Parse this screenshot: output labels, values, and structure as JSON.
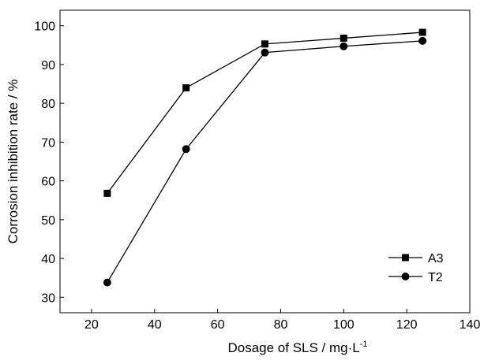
{
  "chart_data": {
    "type": "line",
    "xlabel": "Dosage of SLS / mg·L",
    "xlabel_sup": "-1",
    "ylabel": "Corrosion inhibition rate / %",
    "xlim": [
      10,
      140
    ],
    "ylim": [
      26,
      104
    ],
    "x_ticks": [
      20,
      40,
      60,
      80,
      100,
      120,
      140
    ],
    "y_ticks": [
      30,
      40,
      50,
      60,
      70,
      80,
      90,
      100
    ],
    "x": [
      25,
      50,
      75,
      100,
      125
    ],
    "series": [
      {
        "name": "A3",
        "marker": "square",
        "values": [
          56.8,
          84.0,
          95.3,
          96.8,
          98.3
        ]
      },
      {
        "name": "T2",
        "marker": "circle",
        "values": [
          33.8,
          68.2,
          93.1,
          94.7,
          96.1
        ]
      }
    ],
    "legend_position": "bottom-right",
    "grid": false,
    "line_color": "#000000"
  }
}
